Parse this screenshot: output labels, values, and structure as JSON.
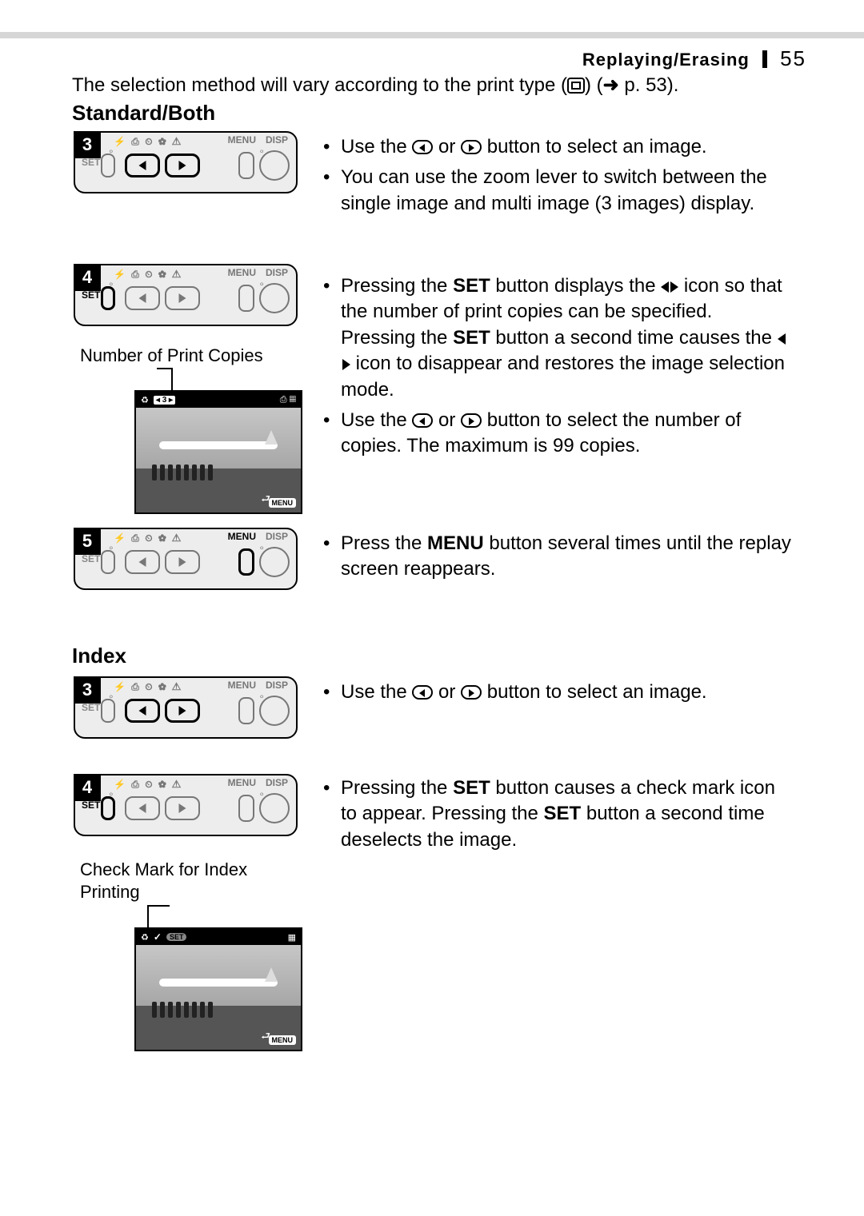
{
  "header": {
    "section": "Replaying/Erasing",
    "page": "55"
  },
  "intro": {
    "pre": "The selection method will vary according to the print type (",
    "mid": ") (",
    "arrow": "➜",
    "post": " p. 53)."
  },
  "sections": {
    "standard": {
      "title": "Standard/Both"
    },
    "index": {
      "title": "Index"
    }
  },
  "steps": {
    "s3": "3",
    "s4": "4",
    "s5": "5",
    "i3": "3",
    "i4": "4"
  },
  "panel": {
    "icons": "⚡  ⎙ ⏲  ✿ ⚠",
    "menu": "MENU",
    "disp": "DISP",
    "set": "SET"
  },
  "captions": {
    "copies": "Number of Print Copies",
    "checkmark": "Check Mark for Index Printing"
  },
  "photo": {
    "copies": "3",
    "menu": "MENU",
    "set": "SET"
  },
  "text": {
    "s3_a": "Use the ",
    "s3_b": " or ",
    "s3_c": " button to select an image.",
    "s3_d": "You can use the zoom lever to switch between the single image and multi image (3 images) display.",
    "s4_a1": "Pressing the ",
    "s4_set": "SET",
    "s4_a2": " button displays the ",
    "s4_a3": " icon so that the number of print copies can be specified. Pressing the ",
    "s4_a4": " button a second time causes the ",
    "s4_a5": " icon to disappear and restores the image selection mode.",
    "s4_b1": "Use the ",
    "s4_b2": " or ",
    "s4_b3": " button to select the number of copies. The maximum is 99 copies.",
    "s5_a1": "Press the ",
    "s5_menu": "MENU",
    "s5_a2": " button several times until the replay screen reappears.",
    "i3_a": "Use the ",
    "i3_b": " or ",
    "i3_c": " button to select an image.",
    "i4_a1": "Pressing the ",
    "i4_a2": " button causes a check mark icon to appear. Pressing the ",
    "i4_a3": " button a second time deselects the image."
  }
}
